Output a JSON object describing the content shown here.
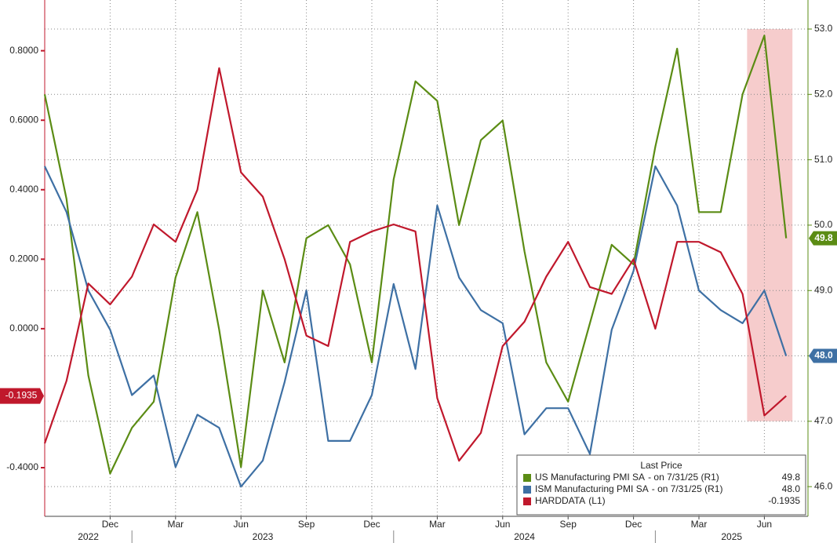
{
  "chart_data": {
    "type": "line",
    "x": [
      "2022-09",
      "2022-10",
      "2022-11",
      "2022-12",
      "2023-01",
      "2023-02",
      "2023-03",
      "2023-04",
      "2023-05",
      "2023-06",
      "2023-07",
      "2023-08",
      "2023-09",
      "2023-10",
      "2023-11",
      "2023-12",
      "2024-01",
      "2024-02",
      "2024-03",
      "2024-04",
      "2024-05",
      "2024-06",
      "2024-07",
      "2024-08",
      "2024-09",
      "2024-10",
      "2024-11",
      "2024-12",
      "2025-01",
      "2025-02",
      "2025-03",
      "2025-04",
      "2025-05",
      "2025-06",
      "2025-07"
    ],
    "xlim": [
      "2022-09",
      "2025-08"
    ],
    "xticks": [
      {
        "value": "2022-12",
        "label": "Dec"
      },
      {
        "value": "2023-03",
        "label": "Mar"
      },
      {
        "value": "2023-06",
        "label": "Jun"
      },
      {
        "value": "2023-09",
        "label": "Sep"
      },
      {
        "value": "2023-12",
        "label": "Dec"
      },
      {
        "value": "2024-03",
        "label": "Mar"
      },
      {
        "value": "2024-06",
        "label": "Jun"
      },
      {
        "value": "2024-09",
        "label": "Sep"
      },
      {
        "value": "2024-12",
        "label": "Dec"
      },
      {
        "value": "2025-03",
        "label": "Mar"
      },
      {
        "value": "2025-06",
        "label": "Jun"
      }
    ],
    "years": [
      "2022",
      "2023",
      "2024",
      "2025"
    ],
    "ylim": [
      -0.54,
      0.946
    ],
    "yticks": [
      {
        "value": 0.8,
        "label": "0.8000"
      },
      {
        "value": 0.6,
        "label": "0.6000"
      },
      {
        "value": 0.4,
        "label": "0.4000"
      },
      {
        "value": 0.2,
        "label": "0.2000"
      },
      {
        "value": 0,
        "label": "0.0000"
      },
      {
        "value": -0.4,
        "label": "-0.4000"
      }
    ],
    "y2lim": [
      45.546,
      53.444
    ],
    "y2ticks": [
      {
        "value": 46,
        "label": "46.0"
      },
      {
        "value": 47,
        "label": "47.0"
      },
      {
        "value": 48,
        "label": "48.0"
      },
      {
        "value": 49,
        "label": "49.0"
      },
      {
        "value": 50,
        "label": "50.0"
      },
      {
        "value": 51,
        "label": "51.0"
      },
      {
        "value": 52,
        "label": "52.0"
      },
      {
        "value": 53,
        "label": "53.0"
      }
    ],
    "grid": true,
    "legend_title": "Last Price",
    "shaded_region": {
      "from": "2025-06",
      "to": "2025-07",
      "y2": [
        47,
        53
      ],
      "color": "#f6cccc"
    },
    "series": [
      {
        "name": "US Manufacturing PMI SA",
        "note": "-  on 7/31/25  (R1)",
        "last_label": "49.8",
        "color": "#5b8c14",
        "axis": "y2",
        "values": [
          52.0,
          50.4,
          47.7,
          46.2,
          46.9,
          47.3,
          49.2,
          50.2,
          48.4,
          46.3,
          49.0,
          47.9,
          49.8,
          50.0,
          49.4,
          47.9,
          50.7,
          52.2,
          51.9,
          50.0,
          51.3,
          51.6,
          49.6,
          47.9,
          47.3,
          48.5,
          49.7,
          49.4,
          51.2,
          52.7,
          50.2,
          50.2,
          52.0,
          52.9,
          49.8
        ]
      },
      {
        "name": "ISM Manufacturing PMI SA",
        "note": "-  on 7/31/25  (R1)",
        "last_label": "48.0",
        "color": "#3e70a4",
        "axis": "y2",
        "values": [
          50.9,
          50.2,
          49.0,
          48.4,
          47.4,
          47.7,
          46.3,
          47.1,
          46.9,
          46.0,
          46.4,
          47.6,
          49.0,
          46.7,
          46.7,
          47.4,
          49.1,
          47.8,
          50.3,
          49.2,
          48.7,
          48.5,
          46.8,
          47.2,
          47.2,
          46.5,
          48.4,
          49.3,
          50.9,
          50.3,
          49.0,
          48.7,
          48.5,
          49.0,
          48.0
        ]
      },
      {
        "name": "HARDDATA",
        "note": "(L1)",
        "last_label": "-0.1935",
        "color": "#c0182c",
        "axis": "y",
        "values": [
          -0.33,
          -0.15,
          0.13,
          0.07,
          0.15,
          0.3,
          0.25,
          0.4,
          0.75,
          0.45,
          0.38,
          0.2,
          -0.02,
          -0.05,
          0.25,
          0.28,
          0.3,
          0.28,
          -0.2,
          -0.38,
          -0.3,
          -0.05,
          0.02,
          0.15,
          0.25,
          0.12,
          0.1,
          0.2,
          0.0,
          0.25,
          0.25,
          0.22,
          0.1,
          -0.25,
          -0.1935
        ]
      }
    ]
  }
}
